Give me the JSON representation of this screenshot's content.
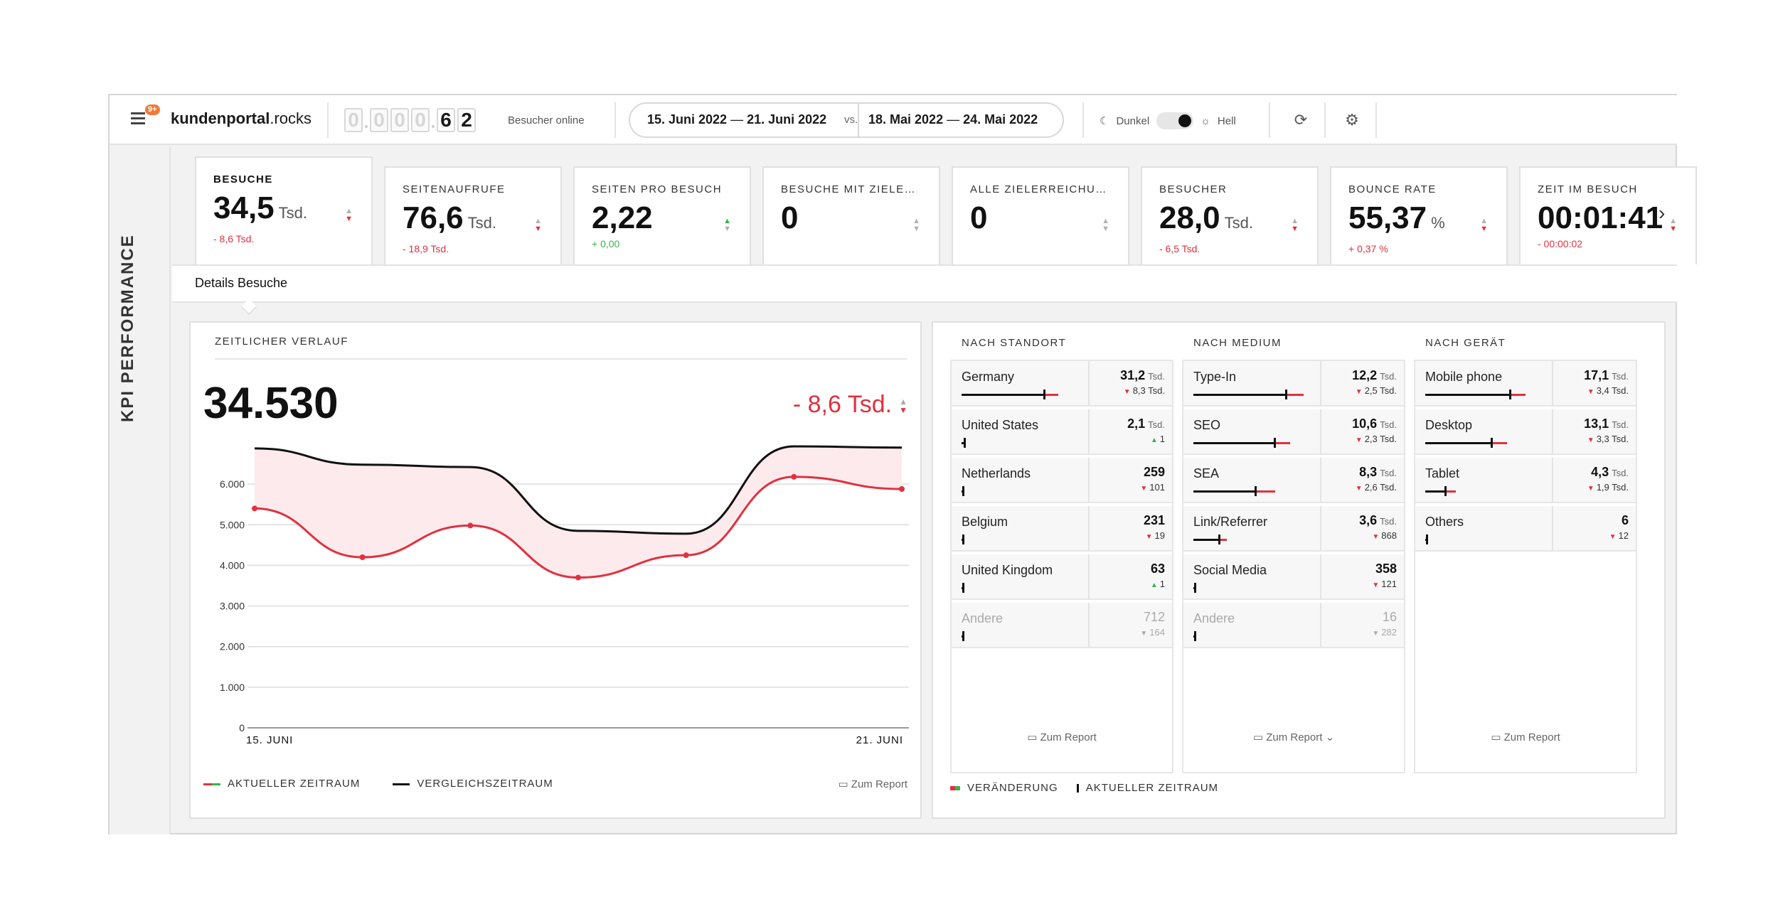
{
  "header": {
    "notification_count": "9+",
    "brand_bold": "kundenportal",
    "brand_rest": ".rocks",
    "online_digits": [
      "0",
      "0",
      "0",
      "0",
      "6",
      "2"
    ],
    "online_label": "Besucher online",
    "range_current": {
      "from": "15. Juni 2022",
      "to": "21. Juni 2022"
    },
    "range_vs": "vs.",
    "range_compare": {
      "from": "18. Mai 2022",
      "to": "24. Mai 2022"
    },
    "dash": "—",
    "theme_dark": "Dunkel",
    "theme_light": "Hell"
  },
  "side_label": "KPI PERFORMANCE",
  "kpis": [
    {
      "title": "BESUCHE",
      "value": "34,5",
      "unit": "Tsd.",
      "delta": "- 8,6 Tsd.",
      "trend": "down",
      "active": true
    },
    {
      "title": "SEITENAUFRUFE",
      "value": "76,6",
      "unit": "Tsd.",
      "delta": "- 18,9 Tsd.",
      "trend": "down"
    },
    {
      "title": "SEITEN PRO BESUCH",
      "value": "2,22",
      "unit": "",
      "delta": "+ 0,00",
      "trend": "up"
    },
    {
      "title": "BESUCHE MIT ZIELERR...",
      "value": "0",
      "unit": "",
      "delta": "",
      "trend": "none"
    },
    {
      "title": "ALLE ZIELERREICHUNG...",
      "value": "0",
      "unit": "",
      "delta": "",
      "trend": "none"
    },
    {
      "title": "BESUCHER",
      "value": "28,0",
      "unit": "Tsd.",
      "delta": "- 6,5 Tsd.",
      "trend": "down"
    },
    {
      "title": "BOUNCE RATE",
      "value": "55,37",
      "unit": "%",
      "delta": "+ 0,37 %",
      "trend": "down"
    },
    {
      "title": "ZEIT IM BESUCH",
      "value": "00:01:41",
      "unit": "",
      "delta": "- 00:00:02",
      "trend": "down"
    }
  ],
  "details_tab": "Details Besuche",
  "timeline": {
    "title": "ZEITLICHER VERLAUF",
    "total": "34.530",
    "delta": "- 8,6 Tsd.",
    "legend_current": "AKTUELLER ZEITRAUM",
    "legend_compare": "VERGLEICHSZEITRAUM",
    "report": "Zum Report"
  },
  "chart_data": {
    "type": "line",
    "x": [
      "15. Juni",
      "16. Juni",
      "17. Juni",
      "18. Juni",
      "19. Juni",
      "20. Juni",
      "21. Juni"
    ],
    "x_tick_labels": [
      "15. JUNI",
      "21. JUNI"
    ],
    "y_ticks": [
      "0",
      "1.000",
      "2.000",
      "3.000",
      "4.000",
      "5.000",
      "6.000"
    ],
    "ylim": [
      0,
      7000
    ],
    "series": [
      {
        "name": "AKTUELLER ZEITRAUM",
        "values": [
          5400,
          4200,
          4980,
          3700,
          4250,
          6180,
          5880
        ],
        "color": "#e0313f"
      },
      {
        "name": "VERGLEICHSZEITRAUM",
        "values": [
          6880,
          6480,
          6420,
          4850,
          4780,
          6930,
          6900
        ],
        "color": "#111111"
      }
    ],
    "fill_between": "#fdeaec",
    "grid": true
  },
  "breakdown": {
    "columns": [
      {
        "title": "NACH STANDORT",
        "report": "Zum Report",
        "rows": [
          {
            "name": "Germany",
            "value": "31,2",
            "unit": "Tsd.",
            "delta": "8,3 Tsd.",
            "dir": "down",
            "bar": 0.73,
            "red": 0.12
          },
          {
            "name": "United States",
            "value": "2,1",
            "unit": "Tsd.",
            "delta": "1",
            "dir": "up",
            "bar": 0.03,
            "red": 0
          },
          {
            "name": "Netherlands",
            "value": "259",
            "unit": "",
            "delta": "101",
            "dir": "down",
            "bar": 0.005,
            "red": 0
          },
          {
            "name": "Belgium",
            "value": "231",
            "unit": "",
            "delta": "19",
            "dir": "down",
            "bar": 0.005,
            "red": 0
          },
          {
            "name": "United Kingdom",
            "value": "63",
            "unit": "",
            "delta": "1",
            "dir": "up",
            "bar": 0.003,
            "red": 0
          },
          {
            "name": "Andere",
            "value": "712",
            "unit": "",
            "delta": "164",
            "dir": "down",
            "bar": 0.01,
            "red": 0,
            "muted": true
          }
        ]
      },
      {
        "title": "NACH MEDIUM",
        "report": "Zum Report",
        "rows": [
          {
            "name": "Type-In",
            "value": "12,2",
            "unit": "Tsd.",
            "delta": "2,5 Tsd.",
            "dir": "down",
            "bar": 0.82,
            "red": 0.15
          },
          {
            "name": "SEO",
            "value": "10,6",
            "unit": "Tsd.",
            "delta": "2,3 Tsd.",
            "dir": "down",
            "bar": 0.72,
            "red": 0.13
          },
          {
            "name": "SEA",
            "value": "8,3",
            "unit": "Tsd.",
            "delta": "2,6 Tsd.",
            "dir": "down",
            "bar": 0.55,
            "red": 0.17
          },
          {
            "name": "Link/Referrer",
            "value": "3,6",
            "unit": "Tsd.",
            "delta": "868",
            "dir": "down",
            "bar": 0.23,
            "red": 0.06
          },
          {
            "name": "Social Media",
            "value": "358",
            "unit": "",
            "delta": "121",
            "dir": "down",
            "bar": 0.01,
            "red": 0
          },
          {
            "name": "Andere",
            "value": "16",
            "unit": "",
            "delta": "282",
            "dir": "down",
            "bar": 0.004,
            "red": 0,
            "muted": true
          }
        ]
      },
      {
        "title": "NACH GERÄT",
        "report": "Zum Report",
        "rows": [
          {
            "name": "Mobile phone",
            "value": "17,1",
            "unit": "Tsd.",
            "delta": "3,4 Tsd.",
            "dir": "down",
            "bar": 0.75,
            "red": 0.13
          },
          {
            "name": "Desktop",
            "value": "13,1",
            "unit": "Tsd.",
            "delta": "3,3 Tsd.",
            "dir": "down",
            "bar": 0.59,
            "red": 0.13
          },
          {
            "name": "Tablet",
            "value": "4,3",
            "unit": "Tsd.",
            "delta": "1,9 Tsd.",
            "dir": "down",
            "bar": 0.18,
            "red": 0.09
          },
          {
            "name": "Others",
            "value": "6",
            "unit": "",
            "delta": "12",
            "dir": "down",
            "bar": 0.004,
            "red": 0
          }
        ]
      }
    ],
    "legend_change": "VERÄNDERUNG",
    "legend_current": "AKTUELLER ZEITRAUM"
  }
}
